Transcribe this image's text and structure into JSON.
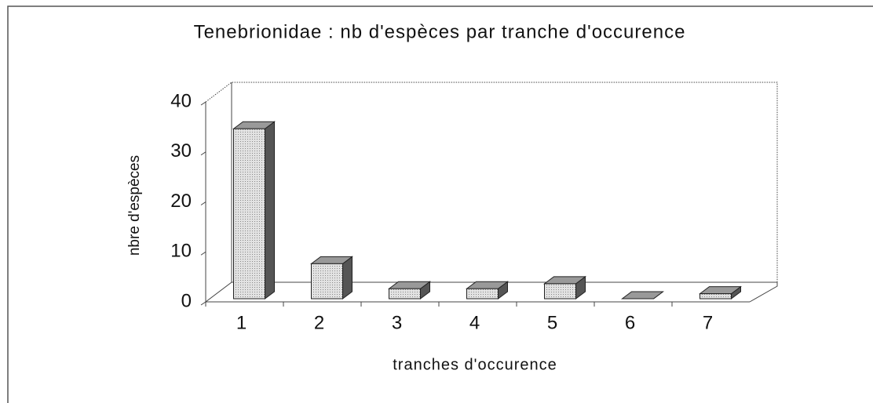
{
  "chart_data": {
    "type": "bar3d",
    "title": "Tenebrionidae : nb d'espèces par tranche d'occurence",
    "x_label": "tranches d'occurence",
    "y_label": "nbre d'espèces",
    "categories": [
      "1",
      "2",
      "3",
      "4",
      "5",
      "6",
      "7"
    ],
    "values": [
      34,
      7,
      2,
      2,
      3,
      0,
      1
    ],
    "color": "#d4d4d4",
    "ylim": [
      0,
      40
    ],
    "yticks": [
      0,
      10,
      20,
      30,
      40
    ]
  }
}
